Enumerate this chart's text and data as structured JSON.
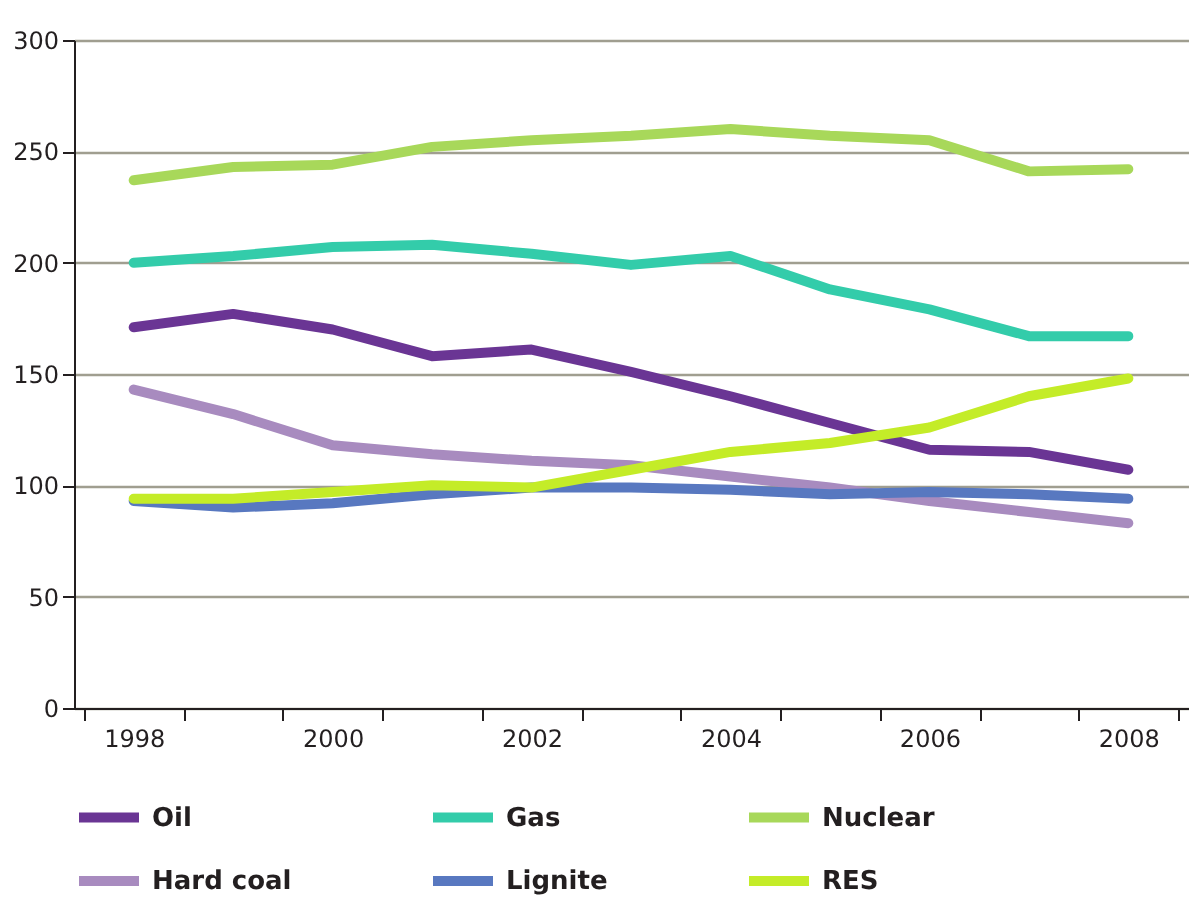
{
  "chart_data": {
    "type": "line",
    "categories": [
      "1998",
      null,
      "2000",
      null,
      "2002",
      null,
      "2004",
      null,
      "2006",
      null,
      "2008"
    ],
    "series": [
      {
        "name": "Oil",
        "color": "#6a3594",
        "values": [
          171,
          177,
          170,
          158,
          161,
          151,
          140,
          128,
          116,
          115,
          107
        ]
      },
      {
        "name": "Gas",
        "color": "#33ccaa",
        "values": [
          200,
          203,
          207,
          208,
          204,
          199,
          203,
          188,
          179,
          167,
          167
        ]
      },
      {
        "name": "Nuclear",
        "color": "#a8d85a",
        "values": [
          237,
          243,
          244,
          252,
          255,
          257,
          260,
          257,
          255,
          241,
          242
        ]
      },
      {
        "name": "Hard coal",
        "color": "#a88bbf",
        "values": [
          143,
          132,
          118,
          114,
          111,
          109,
          104,
          99,
          93,
          88,
          83
        ]
      },
      {
        "name": "Lignite",
        "color": "#5878c0",
        "values": [
          93,
          90,
          92,
          96,
          99,
          99,
          98,
          96,
          97,
          96,
          94
        ]
      },
      {
        "name": "RES",
        "color": "#c4ec28",
        "values": [
          94,
          94,
          97,
          100,
          99,
          107,
          115,
          119,
          126,
          140,
          148
        ]
      }
    ],
    "ylim": [
      0,
      300
    ],
    "yticks": [
      0,
      50,
      100,
      150,
      200,
      250,
      300
    ],
    "grid": "y",
    "legend": "bottom",
    "line_style": "solid"
  }
}
